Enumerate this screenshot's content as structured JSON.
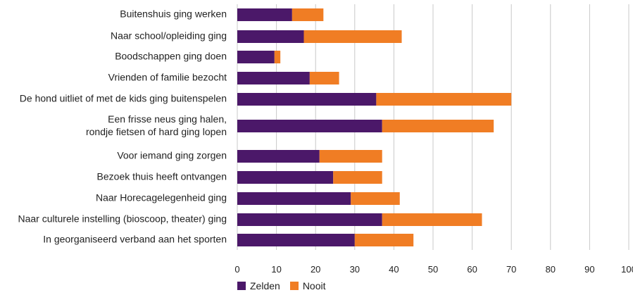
{
  "chart_data": {
    "type": "bar",
    "orientation": "horizontal",
    "stacked": true,
    "title": "",
    "xlabel": "",
    "ylabel": "",
    "xlim": [
      0,
      100
    ],
    "xticks": [
      "0",
      "10",
      "20",
      "30",
      "40",
      "50",
      "60",
      "70",
      "80",
      "90",
      "100"
    ],
    "grid": true,
    "legend_position": "bottom-left",
    "categories": [
      [
        "Buitenshuis ging werken"
      ],
      [
        "Naar school/opleiding ging"
      ],
      [
        "Boodschappen ging doen"
      ],
      [
        "Vrienden of familie bezocht"
      ],
      [
        "De hond uitliet of met de kids ging buitenspelen"
      ],
      [
        "Een frisse neus ging halen,",
        "rondje fietsen of hard ging lopen"
      ],
      [
        "Voor iemand ging zorgen"
      ],
      [
        "Bezoek thuis heeft ontvangen"
      ],
      [
        "Naar Horecagelegenheid ging"
      ],
      [
        "Naar culturele instelling (bioscoop, theater) ging"
      ],
      [
        "In georganiseerd verband aan het sporten"
      ]
    ],
    "series": [
      {
        "name": "Zelden",
        "color": "#4b1869",
        "values": [
          14,
          17,
          9.5,
          18.5,
          35.5,
          37,
          21,
          24.5,
          29,
          37,
          30
        ]
      },
      {
        "name": "Nooit",
        "color": "#f07d24",
        "values": [
          8,
          25,
          1.5,
          7.5,
          34.5,
          28.5,
          16,
          12.5,
          12.5,
          25.5,
          15
        ]
      }
    ]
  },
  "legend": {
    "items": [
      {
        "label": "Zelden",
        "color": "#4b1869"
      },
      {
        "label": "Nooit",
        "color": "#f07d24"
      }
    ]
  }
}
